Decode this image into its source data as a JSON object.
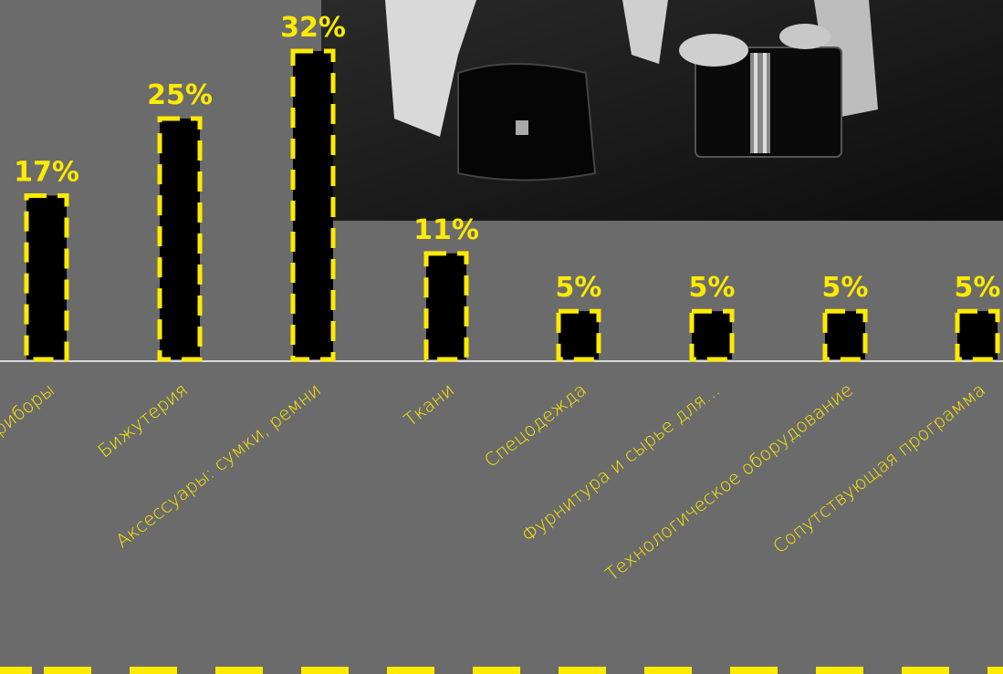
{
  "chart_data": {
    "type": "bar",
    "categories": [
      "Приборы",
      "Бижутерия",
      "Аксессуары: сумки, ремни",
      "Ткани",
      "Спецодежда",
      "Фурнитура и сырье для...",
      "Технологическое оборудование",
      "Сопутствующая программа"
    ],
    "values": [
      17,
      25,
      32,
      11,
      5,
      5,
      5,
      5
    ],
    "value_labels": [
      "17%",
      "25%",
      "32%",
      "11%",
      "5%",
      "5%",
      "5%",
      "5%"
    ],
    "ylim": [
      0,
      32
    ],
    "grid": false,
    "legend": "none"
  },
  "colors": {
    "background": "#6b6b6b",
    "accent": "#ffea00",
    "bar_fill": "#000000",
    "axis": "#ffffff"
  },
  "decor": {
    "photo": "black-and-white photo of two women holding handbags"
  }
}
